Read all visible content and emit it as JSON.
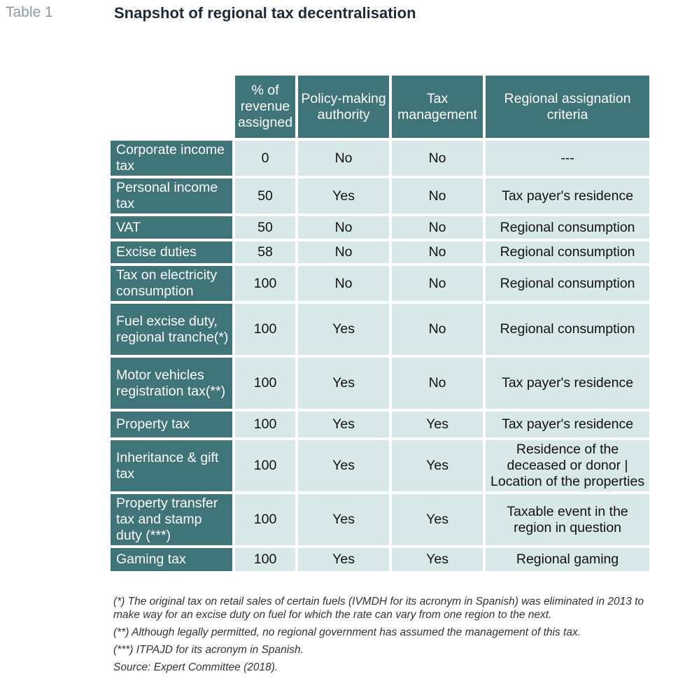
{
  "header": {
    "label": "Table 1",
    "title": "Snapshot of regional tax decentralisation"
  },
  "table": {
    "columns": [
      "% of revenue assigned",
      "Policy-making authority",
      "Tax management",
      "Regional assignation criteria"
    ],
    "rows": [
      {
        "tax": "Corporate income tax",
        "revenue": "0",
        "policy": "No",
        "management": "No",
        "criteria": "---"
      },
      {
        "tax": "Personal income tax",
        "revenue": "50",
        "policy": "Yes",
        "management": "No",
        "criteria": "Tax payer's residence"
      },
      {
        "tax": "VAT",
        "revenue": "50",
        "policy": "No",
        "management": "No",
        "criteria": "Regional consumption"
      },
      {
        "tax": "Excise duties",
        "revenue": "58",
        "policy": "No",
        "management": "No",
        "criteria": "Regional consumption"
      },
      {
        "tax": "Tax on electricity consumption",
        "revenue": "100",
        "policy": "No",
        "management": "No",
        "criteria": "Regional consumption"
      },
      {
        "tax": "Fuel excise duty, regional tranche(*)",
        "revenue": "100",
        "policy": "Yes",
        "management": "No",
        "criteria": "Regional consumption"
      },
      {
        "tax": "Motor vehicles registration tax(**)",
        "revenue": "100",
        "policy": "Yes",
        "management": "No",
        "criteria": "Tax payer's residence"
      },
      {
        "tax": "Property tax",
        "revenue": "100",
        "policy": "Yes",
        "management": "Yes",
        "criteria": "Tax payer's residence"
      },
      {
        "tax": "Inheritance & gift tax",
        "revenue": "100",
        "policy": "Yes",
        "management": "Yes",
        "criteria": "Residence of the deceased or donor | Location of the properties"
      },
      {
        "tax": "Property transfer tax and stamp duty (***)",
        "revenue": "100",
        "policy": "Yes",
        "management": "Yes",
        "criteria": "Taxable event in the region in question"
      },
      {
        "tax": "Gaming tax",
        "revenue": "100",
        "policy": "Yes",
        "management": "Yes",
        "criteria": "Regional gaming"
      }
    ]
  },
  "notes": [
    "(*) The original tax on retail sales of certain fuels (IVMDH for its acronym in Spanish) was eliminated in 2013 to make way for an excise duty on fuel for which the rate can vary from one region to the next.",
    "(**) Although legally permitted, no regional government has assumed the management of this tax.",
    "(***) ITPAJD for its acronym in Spanish.",
    "Source: Expert Committee (2018)."
  ]
}
